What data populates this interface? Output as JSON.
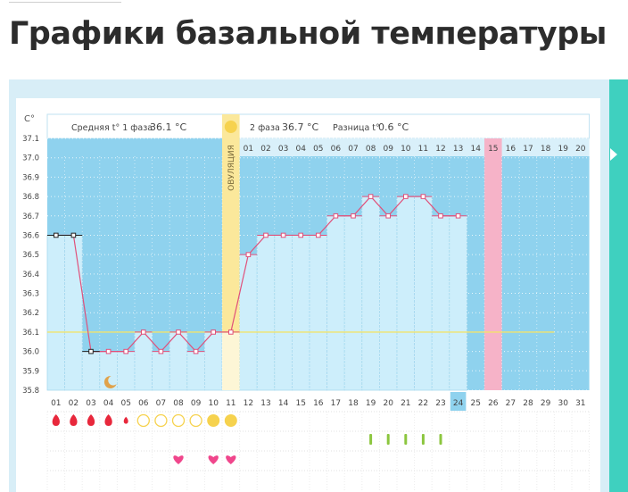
{
  "page": {
    "title": "Графики базальной температуры"
  },
  "header": {
    "unit": "C°",
    "phase1_label": "Средняя t° 1 фаза",
    "phase1_value": "36.1 °C",
    "phase2_label": "2 фаза",
    "phase2_value": "36.7 °C",
    "diff_label": "Разница t°",
    "diff_value": "0.6 °C",
    "ovulation_label": "ОВУЛЯЦИЯ"
  },
  "colors": {
    "band_blue": "#8fd2ee",
    "bar_fill": "#cdeefb",
    "line": "#e0507a",
    "ovulation": "#fbe89b",
    "pink_highlight": "#f6b3c8",
    "coverline": "#f2e36a",
    "grid_text": "#4a4a4a",
    "heart": "#f0468c",
    "drop": "#e8283c",
    "sun": "#f6d24e",
    "dash": "#8cc63f"
  },
  "chart_data": {
    "type": "line",
    "title": "",
    "xlabel": "",
    "ylabel": "C°",
    "ylim": [
      35.8,
      37.1
    ],
    "y_ticks": [
      "37.1",
      "37.0",
      "36.9",
      "36.8",
      "36.7",
      "36.6",
      "36.5",
      "36.4",
      "36.3",
      "36.2",
      "36.1",
      "36.0",
      "35.9",
      "35.8"
    ],
    "x": [
      "01",
      "02",
      "03",
      "04",
      "05",
      "06",
      "07",
      "08",
      "09",
      "10",
      "11",
      "12",
      "13",
      "14",
      "15",
      "16",
      "17",
      "18",
      "19",
      "20",
      "21",
      "22",
      "23",
      "24",
      "25",
      "26",
      "27",
      "28",
      "29",
      "30",
      "31"
    ],
    "phase2_days": [
      "01",
      "02",
      "03",
      "04",
      "05",
      "06",
      "07",
      "08",
      "09",
      "10",
      "11",
      "12",
      "13",
      "14",
      "15",
      "16",
      "17",
      "18",
      "19",
      "20"
    ],
    "series": [
      {
        "values": [
          36.6,
          36.6,
          36.0,
          36.0,
          36.0,
          36.1,
          36.0,
          36.1,
          36.0,
          36.1,
          36.1,
          36.5,
          36.6,
          36.6,
          36.6,
          36.6,
          36.7,
          36.7,
          36.8,
          36.7,
          36.8,
          36.8,
          36.7,
          36.7,
          null,
          null,
          null,
          null,
          null,
          null,
          null
        ]
      }
    ],
    "coverline": 36.1,
    "ovulation_day": "11",
    "highlight_day": "26",
    "current_day": "24",
    "moon_day": "04",
    "menstruation": {
      "drops": [
        "01",
        "02",
        "03",
        "04"
      ],
      "small_drop": "05",
      "circles": [
        "06",
        "07",
        "08",
        "09"
      ],
      "filled": [
        "10",
        "11"
      ]
    },
    "marker_days": [
      "19",
      "20",
      "21",
      "22",
      "23"
    ],
    "heart_days": [
      "08",
      "10",
      "11"
    ]
  }
}
